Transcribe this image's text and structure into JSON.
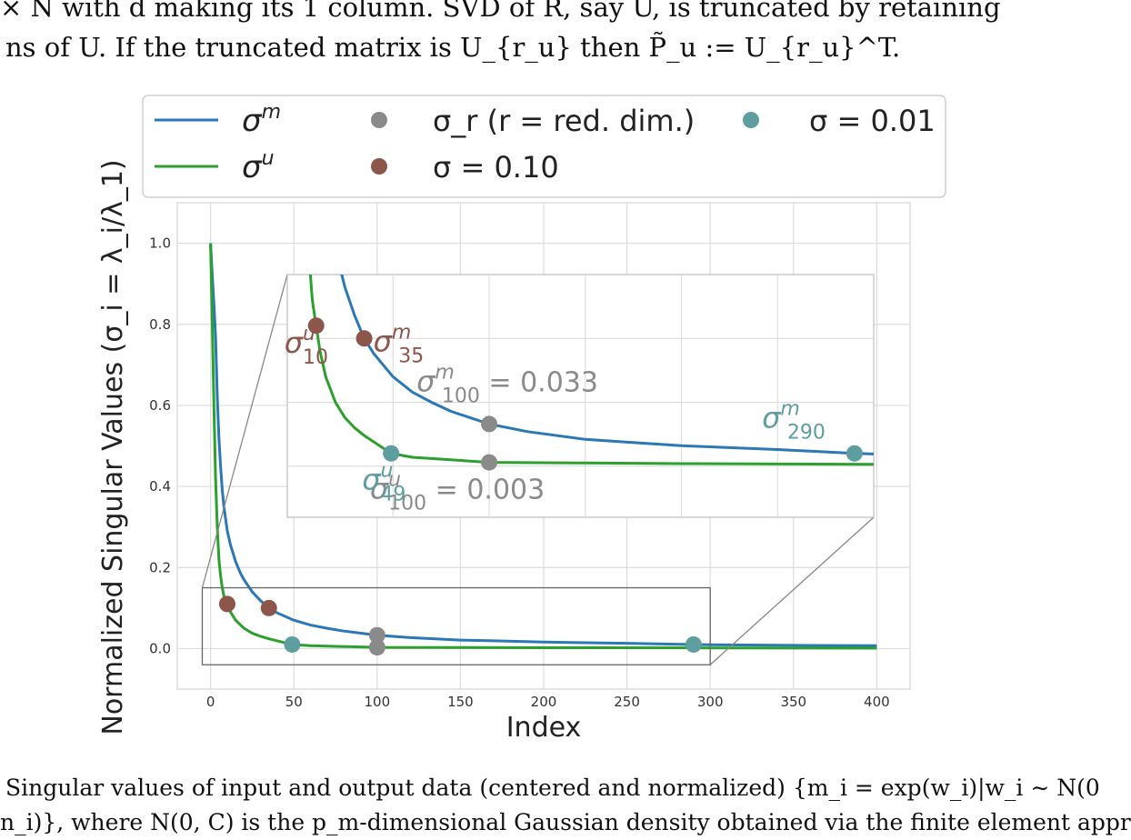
{
  "paper": {
    "top_text_line1": "× N with d  making its 1    column. SVD of R, say U, is truncated by retaining",
    "top_text_line2": "ns of U. If the truncated matrix is U_{r_u} then P̃_u := U_{r_u}^T.",
    "caption_line1": "Singular values of input and output data (centered and normalized) {m_i = exp(w_i)|w_i ∼ N(0",
    "caption_line2": "n_i)}, where N(0, C) is the p_m-dimensional Gaussian density obtained via the finite element appr"
  },
  "chart_data": {
    "type": "line",
    "xlabel": "Index",
    "ylabel": "Normalized Singular Values (σ_i = λ_i/λ_1)",
    "xlim": [
      -20,
      420
    ],
    "ylim": [
      -0.1,
      1.1
    ],
    "xticks": [
      0,
      50,
      100,
      150,
      200,
      250,
      300,
      350,
      400
    ],
    "yticks": [
      0.0,
      0.2,
      0.4,
      0.6,
      0.8,
      1.0
    ],
    "grid": true,
    "legend": {
      "placement": "top",
      "entries": [
        {
          "label": "σ^m",
          "kind": "line",
          "color": "#2a78b5"
        },
        {
          "label": "σ^u",
          "kind": "line",
          "color": "#2ca02c"
        },
        {
          "label": "σ_r (r = red. dim.)",
          "kind": "marker",
          "color": "#8a8a8a"
        },
        {
          "label": "σ = 0.10",
          "kind": "marker",
          "color": "#8c564b"
        },
        {
          "label": "σ = 0.01",
          "kind": "marker",
          "color": "#5f9ea0"
        }
      ]
    },
    "series": [
      {
        "name": "σ^m",
        "color": "#2a78b5",
        "x": [
          0,
          1,
          2,
          3,
          4,
          5,
          6,
          7,
          8,
          10,
          12,
          15,
          18,
          20,
          25,
          30,
          35,
          40,
          50,
          60,
          70,
          80,
          100,
          120,
          150,
          170,
          200,
          250,
          290,
          300,
          350,
          400
        ],
        "y": [
          1.0,
          0.92,
          0.85,
          0.77,
          0.62,
          0.52,
          0.45,
          0.39,
          0.35,
          0.29,
          0.255,
          0.215,
          0.185,
          0.17,
          0.14,
          0.118,
          0.1,
          0.088,
          0.07,
          0.058,
          0.05,
          0.043,
          0.033,
          0.027,
          0.021,
          0.019,
          0.016,
          0.013,
          0.01,
          0.0095,
          0.008,
          0.007
        ]
      },
      {
        "name": "σ^u",
        "color": "#2ca02c",
        "x": [
          0,
          1,
          2,
          3,
          4,
          5,
          6,
          7,
          8,
          10,
          12,
          15,
          20,
          25,
          30,
          35,
          40,
          49,
          60,
          80,
          100,
          150,
          200,
          300,
          400
        ],
        "y": [
          1.0,
          0.8,
          0.6,
          0.42,
          0.3,
          0.22,
          0.18,
          0.15,
          0.13,
          0.11,
          0.09,
          0.07,
          0.05,
          0.038,
          0.03,
          0.024,
          0.019,
          0.01,
          0.007,
          0.005,
          0.003,
          0.0025,
          0.002,
          0.0015,
          0.001
        ]
      }
    ],
    "markers": [
      {
        "group": "σ = 0.10",
        "x": 10,
        "y": 0.11,
        "color": "#8c564b",
        "label_base": "σ",
        "label_sup": "u",
        "label_sub": "10"
      },
      {
        "group": "σ = 0.10",
        "x": 35,
        "y": 0.1,
        "color": "#8c564b",
        "label_base": "σ",
        "label_sup": "m",
        "label_sub": "35"
      },
      {
        "group": "σ_r",
        "x": 100,
        "y": 0.033,
        "color": "#8a8a8a",
        "label_base": "σ",
        "label_sup": "m",
        "label_sub": "100",
        "label_value": " = 0.033"
      },
      {
        "group": "σ_r",
        "x": 100,
        "y": 0.003,
        "color": "#8a8a8a",
        "label_base": "σ",
        "label_sup": "u",
        "label_sub": "100",
        "label_value": " = 0.003"
      },
      {
        "group": "σ = 0.01",
        "x": 49,
        "y": 0.01,
        "color": "#5f9ea0",
        "label_base": "σ",
        "label_sup": "u",
        "label_sub": "49"
      },
      {
        "group": "σ = 0.01",
        "x": 290,
        "y": 0.01,
        "color": "#5f9ea0",
        "label_base": "σ",
        "label_sup": "m",
        "label_sub": "290"
      }
    ],
    "inset": {
      "zoom_xlim": [
        -5,
        300
      ],
      "zoom_ylim": [
        -0.04,
        0.15
      ]
    }
  }
}
